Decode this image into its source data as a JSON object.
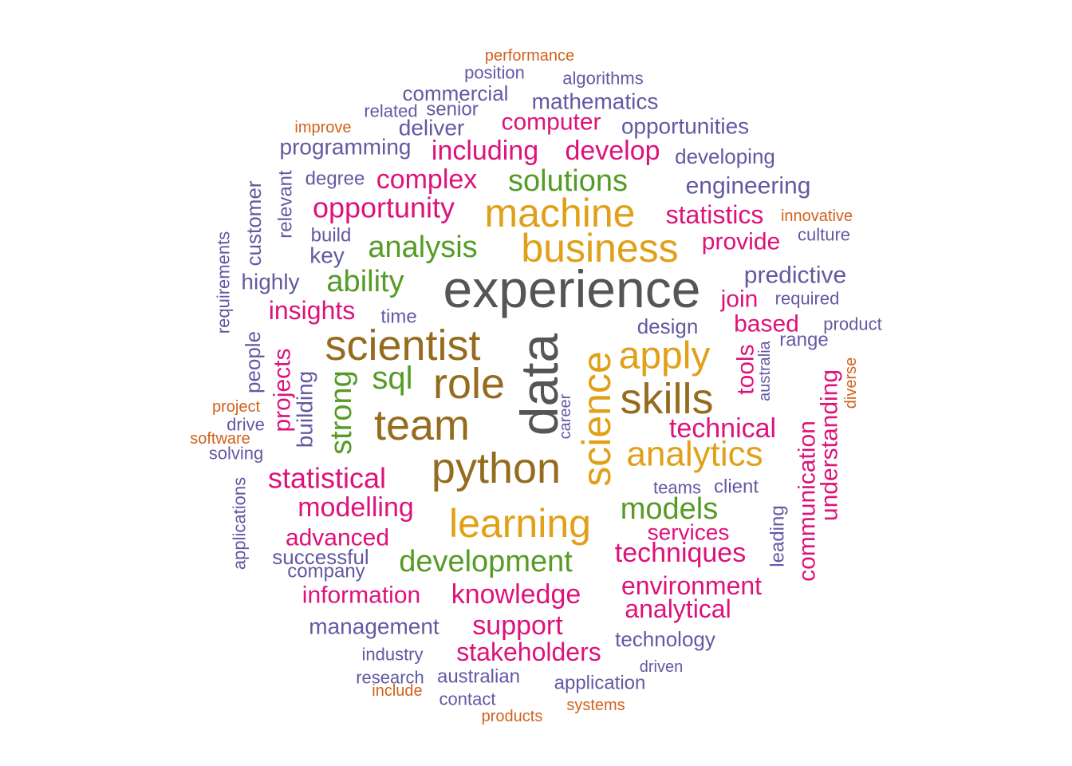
{
  "palette": {
    "gray": "#555555",
    "brown": "#956c1f",
    "gold": "#e0a017",
    "green": "#559b25",
    "magenta": "#dd127b",
    "purple": "#6259a3",
    "orange": "#d2611c"
  },
  "words": [
    {
      "text": "experience",
      "color": "gray"
    },
    {
      "text": "data",
      "color": "gray"
    },
    {
      "text": "scientist",
      "color": "brown"
    },
    {
      "text": "role",
      "color": "brown"
    },
    {
      "text": "team",
      "color": "brown"
    },
    {
      "text": "python",
      "color": "brown"
    },
    {
      "text": "skills",
      "color": "brown"
    },
    {
      "text": "science",
      "color": "gold"
    },
    {
      "text": "machine",
      "color": "gold"
    },
    {
      "text": "business",
      "color": "gold"
    },
    {
      "text": "learning",
      "color": "gold"
    },
    {
      "text": "apply",
      "color": "gold"
    },
    {
      "text": "analytics",
      "color": "gold"
    },
    {
      "text": "analysis",
      "color": "green"
    },
    {
      "text": "solutions",
      "color": "green"
    },
    {
      "text": "ability",
      "color": "green"
    },
    {
      "text": "sql",
      "color": "green"
    },
    {
      "text": "strong",
      "color": "green"
    },
    {
      "text": "models",
      "color": "green"
    },
    {
      "text": "development",
      "color": "green"
    },
    {
      "text": "opportunity",
      "color": "magenta"
    },
    {
      "text": "complex",
      "color": "magenta"
    },
    {
      "text": "including",
      "color": "magenta"
    },
    {
      "text": "develop",
      "color": "magenta"
    },
    {
      "text": "computer",
      "color": "magenta"
    },
    {
      "text": "statistics",
      "color": "magenta"
    },
    {
      "text": "provide",
      "color": "magenta"
    },
    {
      "text": "insights",
      "color": "magenta"
    },
    {
      "text": "join",
      "color": "magenta"
    },
    {
      "text": "based",
      "color": "magenta"
    },
    {
      "text": "tools",
      "color": "magenta"
    },
    {
      "text": "projects",
      "color": "magenta"
    },
    {
      "text": "technical",
      "color": "magenta"
    },
    {
      "text": "statistical",
      "color": "magenta"
    },
    {
      "text": "modelling",
      "color": "magenta"
    },
    {
      "text": "advanced",
      "color": "magenta"
    },
    {
      "text": "services",
      "color": "magenta"
    },
    {
      "text": "techniques",
      "color": "magenta"
    },
    {
      "text": "information",
      "color": "magenta"
    },
    {
      "text": "knowledge",
      "color": "magenta"
    },
    {
      "text": "environment",
      "color": "magenta"
    },
    {
      "text": "analytical",
      "color": "magenta"
    },
    {
      "text": "support",
      "color": "magenta"
    },
    {
      "text": "stakeholders",
      "color": "magenta"
    },
    {
      "text": "communication",
      "color": "magenta"
    },
    {
      "text": "understanding",
      "color": "magenta"
    },
    {
      "text": "performance",
      "color": "orange"
    },
    {
      "text": "improve",
      "color": "orange"
    },
    {
      "text": "innovative",
      "color": "orange"
    },
    {
      "text": "project",
      "color": "orange"
    },
    {
      "text": "software",
      "color": "orange"
    },
    {
      "text": "diverse",
      "color": "orange"
    },
    {
      "text": "include",
      "color": "orange"
    },
    {
      "text": "products",
      "color": "orange"
    },
    {
      "text": "systems",
      "color": "orange"
    },
    {
      "text": "position",
      "color": "purple"
    },
    {
      "text": "algorithms",
      "color": "purple"
    },
    {
      "text": "commercial",
      "color": "purple"
    },
    {
      "text": "related",
      "color": "purple"
    },
    {
      "text": "senior",
      "color": "purple"
    },
    {
      "text": "mathematics",
      "color": "purple"
    },
    {
      "text": "deliver",
      "color": "purple"
    },
    {
      "text": "opportunities",
      "color": "purple"
    },
    {
      "text": "programming",
      "color": "purple"
    },
    {
      "text": "developing",
      "color": "purple"
    },
    {
      "text": "degree",
      "color": "purple"
    },
    {
      "text": "engineering",
      "color": "purple"
    },
    {
      "text": "customer",
      "color": "purple"
    },
    {
      "text": "relevant",
      "color": "purple"
    },
    {
      "text": "requirements",
      "color": "purple"
    },
    {
      "text": "build",
      "color": "purple"
    },
    {
      "text": "key",
      "color": "purple"
    },
    {
      "text": "culture",
      "color": "purple"
    },
    {
      "text": "highly",
      "color": "purple"
    },
    {
      "text": "predictive",
      "color": "purple"
    },
    {
      "text": "required",
      "color": "purple"
    },
    {
      "text": "time",
      "color": "purple"
    },
    {
      "text": "design",
      "color": "purple"
    },
    {
      "text": "product",
      "color": "purple"
    },
    {
      "text": "range",
      "color": "purple"
    },
    {
      "text": "australia",
      "color": "purple"
    },
    {
      "text": "people",
      "color": "purple"
    },
    {
      "text": "building",
      "color": "purple"
    },
    {
      "text": "career",
      "color": "purple"
    },
    {
      "text": "drive",
      "color": "purple"
    },
    {
      "text": "solving",
      "color": "purple"
    },
    {
      "text": "teams",
      "color": "purple"
    },
    {
      "text": "client",
      "color": "purple"
    },
    {
      "text": "applications",
      "color": "purple"
    },
    {
      "text": "leading",
      "color": "purple"
    },
    {
      "text": "successful",
      "color": "purple"
    },
    {
      "text": "company",
      "color": "purple"
    },
    {
      "text": "management",
      "color": "purple"
    },
    {
      "text": "technology",
      "color": "purple"
    },
    {
      "text": "industry",
      "color": "purple"
    },
    {
      "text": "driven",
      "color": "purple"
    },
    {
      "text": "research",
      "color": "purple"
    },
    {
      "text": "australian",
      "color": "purple"
    },
    {
      "text": "application",
      "color": "purple"
    },
    {
      "text": "contact",
      "color": "purple"
    }
  ]
}
